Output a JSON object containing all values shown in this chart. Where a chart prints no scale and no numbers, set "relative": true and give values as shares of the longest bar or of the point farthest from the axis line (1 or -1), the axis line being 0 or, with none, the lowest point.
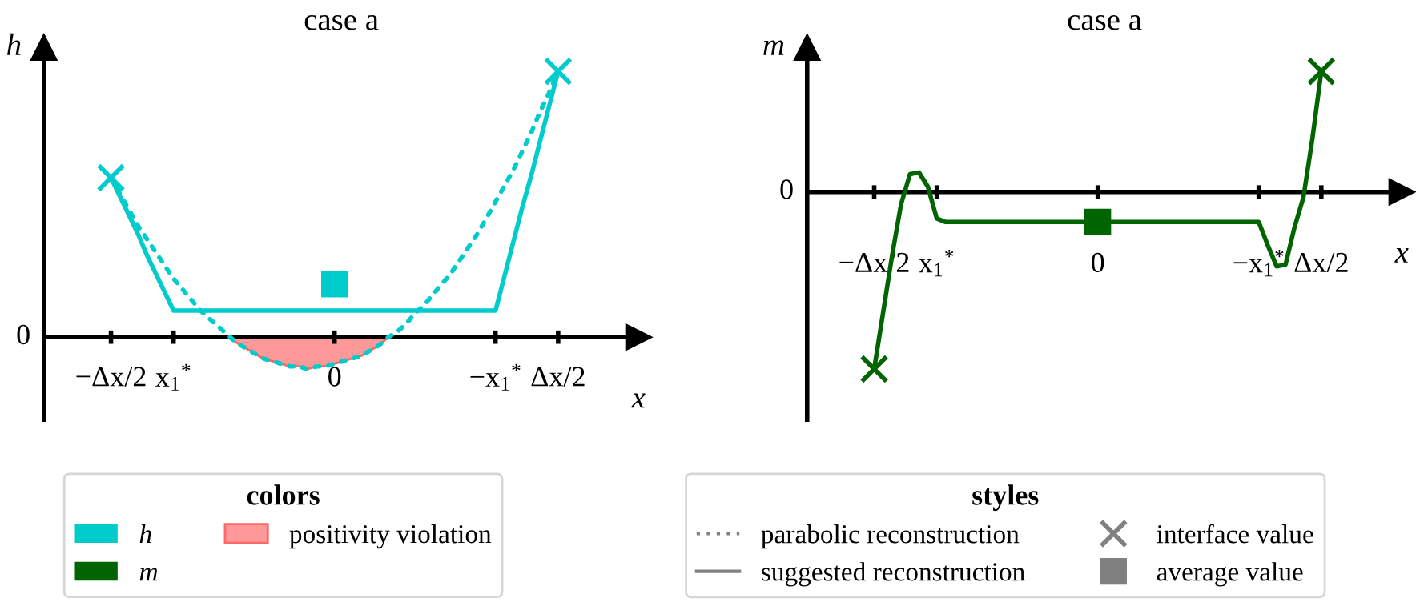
{
  "chart_data": [
    {
      "type": "line",
      "title": "case a",
      "xlabel": "x",
      "ylabel": "h",
      "relative": true,
      "categories": [
        "−Δx/2",
        null,
        null,
        null,
        null,
        null,
        null,
        "x$_{1}$$^{*}$",
        null,
        null,
        null,
        null,
        null,
        null,
        null,
        null,
        null,
        null,
        null,
        null,
        null,
        null,
        null,
        null,
        null,
        "0",
        null,
        null,
        null,
        null,
        null,
        null,
        null,
        null,
        null,
        null,
        null,
        null,
        null,
        null,
        null,
        null,
        null,
        "−x$_{1}$$^{*}$",
        null,
        null,
        null,
        null,
        null,
        null,
        "Δx/2"
      ],
      "annotations": [
        "0"
      ],
      "legend": "bottom",
      "legend_title": "colors",
      "series": [
        {
          "type": "area",
          "name": "positivity violation",
          "color": "#ff9999",
          "values": [
            null,
            null,
            null,
            null,
            null,
            null,
            null,
            null,
            null,
            null,
            null,
            null,
            null,
            0,
            -0.02,
            -0.04,
            -0.06,
            -0.08,
            -0.09,
            -0.1,
            -0.11,
            -0.11,
            -0.12,
            -0.11,
            -0.11,
            -0.1,
            -0.09,
            -0.08,
            -0.07,
            -0.05,
            -0.03,
            0,
            null,
            null,
            null,
            null,
            null,
            null,
            null,
            null,
            null,
            null,
            null,
            null,
            null,
            null,
            null,
            null,
            null,
            null,
            null
          ]
        },
        {
          "type": "line",
          "color": "#00cccc",
          "line_style": "dotted",
          "values": [
            0.6,
            0.54,
            0.48,
            0.42,
            0.37,
            0.32,
            0.27,
            0.22,
            0.18,
            0.14,
            0.1,
            0.07,
            0.04,
            0.01,
            -0.02,
            -0.04,
            -0.06,
            -0.08,
            -0.09,
            -0.1,
            -0.11,
            -0.11,
            -0.12,
            -0.11,
            -0.11,
            -0.1,
            -0.09,
            -0.08,
            -0.07,
            -0.05,
            -0.03,
            0,
            0.02,
            0.05,
            0.09,
            0.12,
            0.16,
            0.2,
            0.24,
            0.29,
            0.34,
            0.39,
            0.45,
            0.51,
            0.57,
            0.63,
            0.7,
            0.77,
            0.85,
            0.92,
            1
          ]
        },
        {
          "type": "line",
          "name": "h",
          "color": "#00cccc",
          "line_style": "solid",
          "values": [
            0.6,
            0.53,
            0.46,
            0.39,
            0.31,
            0.24,
            0.17,
            0.1,
            0.1,
            0.1,
            0.1,
            0.1,
            0.1,
            0.1,
            0.1,
            0.1,
            0.1,
            0.1,
            0.1,
            0.1,
            0.1,
            0.1,
            0.1,
            0.1,
            0.1,
            0.1,
            0.1,
            0.1,
            0.1,
            0.1,
            0.1,
            0.1,
            0.1,
            0.1,
            0.1,
            0.1,
            0.1,
            0.1,
            0.1,
            0.1,
            0.1,
            0.1,
            0.1,
            0.1,
            0.23,
            0.36,
            0.49,
            0.61,
            0.74,
            0.87,
            1
          ]
        },
        {
          "type": "scatter",
          "color": "#00cccc",
          "marker": "cross",
          "values": [
            0.6,
            null,
            null,
            null,
            null,
            null,
            null,
            null,
            null,
            null,
            null,
            null,
            null,
            null,
            null,
            null,
            null,
            null,
            null,
            null,
            null,
            null,
            null,
            null,
            null,
            null,
            null,
            null,
            null,
            null,
            null,
            null,
            null,
            null,
            null,
            null,
            null,
            null,
            null,
            null,
            null,
            null,
            null,
            null,
            null,
            null,
            null,
            null,
            null,
            null,
            1
          ]
        },
        {
          "type": "scatter",
          "color": "#00cccc",
          "marker": "square",
          "values": [
            null,
            null,
            null,
            null,
            null,
            null,
            null,
            null,
            null,
            null,
            null,
            null,
            null,
            null,
            null,
            null,
            null,
            null,
            null,
            null,
            null,
            null,
            null,
            null,
            null,
            0.2,
            null,
            null,
            null,
            null,
            null,
            null,
            null,
            null,
            null,
            null,
            null,
            null,
            null,
            null,
            null,
            null,
            null,
            null,
            null,
            null,
            null,
            null,
            null,
            null,
            null
          ]
        }
      ]
    },
    {
      "type": "line",
      "title": "case a",
      "xlabel": "x",
      "ylabel": "m",
      "relative": true,
      "categories": [
        "−Δx/2",
        null,
        null,
        null,
        null,
        null,
        null,
        "x$_{1}$$^{*}$",
        null,
        null,
        null,
        null,
        null,
        null,
        null,
        null,
        null,
        null,
        null,
        null,
        null,
        null,
        null,
        null,
        null,
        "0",
        null,
        null,
        null,
        null,
        null,
        null,
        null,
        null,
        null,
        null,
        null,
        null,
        null,
        null,
        null,
        null,
        null,
        "−x$_{1}$$^{*}$",
        null,
        null,
        null,
        null,
        null,
        null,
        "Δx/2"
      ],
      "annotations": [
        "0"
      ],
      "series": [
        {
          "type": "line",
          "name": "m",
          "color": "#006400",
          "line_style": "solid",
          "values": [
            -1,
            -0.68,
            -0.36,
            -0.07,
            0.1,
            0.11,
            0.03,
            -0.15,
            -0.17,
            -0.17,
            -0.17,
            -0.17,
            -0.17,
            -0.17,
            -0.17,
            -0.17,
            -0.17,
            -0.17,
            -0.17,
            -0.17,
            -0.17,
            -0.17,
            -0.17,
            -0.17,
            -0.17,
            -0.17,
            -0.17,
            -0.17,
            -0.17,
            -0.17,
            -0.17,
            -0.17,
            -0.17,
            -0.17,
            -0.17,
            -0.17,
            -0.17,
            -0.17,
            -0.17,
            -0.17,
            -0.17,
            -0.17,
            -0.17,
            -0.17,
            -0.3,
            -0.42,
            -0.41,
            -0.2,
            -0.03,
            0.3,
            0.68
          ]
        },
        {
          "type": "scatter",
          "color": "#006400",
          "marker": "cross",
          "values": [
            -1,
            null,
            null,
            null,
            null,
            null,
            null,
            null,
            null,
            null,
            null,
            null,
            null,
            null,
            null,
            null,
            null,
            null,
            null,
            null,
            null,
            null,
            null,
            null,
            null,
            null,
            null,
            null,
            null,
            null,
            null,
            null,
            null,
            null,
            null,
            null,
            null,
            null,
            null,
            null,
            null,
            null,
            null,
            null,
            null,
            null,
            null,
            null,
            null,
            null,
            0.68
          ]
        },
        {
          "type": "scatter",
          "color": "#006400",
          "marker": "square",
          "values": [
            null,
            null,
            null,
            null,
            null,
            null,
            null,
            null,
            null,
            null,
            null,
            null,
            null,
            null,
            null,
            null,
            null,
            null,
            null,
            null,
            null,
            null,
            null,
            null,
            null,
            -0.17,
            null,
            null,
            null,
            null,
            null,
            null,
            null,
            null,
            null,
            null,
            null,
            null,
            null,
            null,
            null,
            null,
            null,
            null,
            null,
            null,
            null,
            null,
            null,
            null,
            null
          ]
        }
      ]
    },
    {
      "type": "other",
      "legend_title": "styles",
      "legend": "bottom",
      "series": [
        {
          "name": "parabolic reconstruction",
          "color": "#808080",
          "line_style": "dotted"
        },
        {
          "name": "suggested reconstruction",
          "color": "#808080",
          "line_style": "solid"
        },
        {
          "name": "interface value",
          "color": "#808080",
          "marker": "cross"
        },
        {
          "name": "average value",
          "color": "#808080",
          "marker": "square"
        }
      ]
    }
  ]
}
